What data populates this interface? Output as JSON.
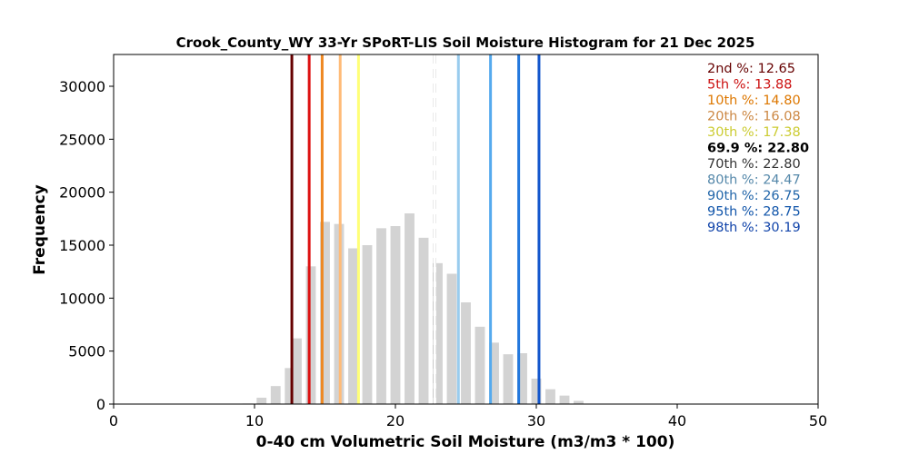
{
  "chart_data": {
    "type": "bar",
    "title": "Crook_County_WY 33-Yr SPoRT-LIS Soil Moisture Histogram for 21 Dec 2025",
    "xlabel": "0-40 cm Volumetric Soil Moisture (m3/m3 * 100)",
    "ylabel": "Frequency",
    "xlim": [
      0,
      50
    ],
    "ylim": [
      0,
      33000
    ],
    "xticks": [
      0,
      10,
      20,
      30,
      40,
      50
    ],
    "yticks": [
      0,
      5000,
      10000,
      15000,
      20000,
      25000,
      30000
    ],
    "bar_color": "#d3d3d3",
    "bins": [
      {
        "x": 9.5,
        "value": 50
      },
      {
        "x": 10.5,
        "value": 600
      },
      {
        "x": 11.5,
        "value": 1700
      },
      {
        "x": 12.5,
        "value": 3400
      },
      {
        "x": 13.0,
        "value": 6200
      },
      {
        "x": 14.0,
        "value": 13000
      },
      {
        "x": 15.0,
        "value": 17200
      },
      {
        "x": 16.0,
        "value": 17000
      },
      {
        "x": 17.0,
        "value": 14700
      },
      {
        "x": 18.0,
        "value": 15000
      },
      {
        "x": 19.0,
        "value": 16600
      },
      {
        "x": 20.0,
        "value": 16800
      },
      {
        "x": 21.0,
        "value": 18000
      },
      {
        "x": 22.0,
        "value": 15700
      },
      {
        "x": 23.0,
        "value": 13300
      },
      {
        "x": 24.0,
        "value": 12300
      },
      {
        "x": 25.0,
        "value": 9600
      },
      {
        "x": 26.0,
        "value": 7300
      },
      {
        "x": 27.0,
        "value": 5800
      },
      {
        "x": 28.0,
        "value": 4700
      },
      {
        "x": 29.0,
        "value": 4800
      },
      {
        "x": 30.0,
        "value": 2400
      },
      {
        "x": 31.0,
        "value": 1400
      },
      {
        "x": 32.0,
        "value": 800
      },
      {
        "x": 33.0,
        "value": 300
      }
    ],
    "percentile_lines": [
      {
        "label": "2nd %: 12.65",
        "value": 12.65,
        "color": "#660000",
        "style": "solid"
      },
      {
        "label": "5th %: 13.88",
        "value": 13.88,
        "color": "#dd1111",
        "style": "solid"
      },
      {
        "label": "10th %: 14.80",
        "value": 14.8,
        "color": "#ee8822",
        "style": "solid"
      },
      {
        "label": "20th %: 16.08",
        "value": 16.08,
        "color": "#ffbb77",
        "style": "solid"
      },
      {
        "label": "30th %: 17.38",
        "value": 17.38,
        "color": "#ffff77",
        "style": "solid"
      },
      {
        "label": "69.9 %: 22.80",
        "value": 22.8,
        "color": "#000000",
        "style": "dashed"
      },
      {
        "label": "70th %: 22.80",
        "value": 22.8,
        "color": "#ffffff",
        "style": "solid"
      },
      {
        "label": "80th %: 24.47",
        "value": 24.47,
        "color": "#99ccee",
        "style": "solid"
      },
      {
        "label": "90th %: 26.75",
        "value": 26.75,
        "color": "#55aaee",
        "style": "solid"
      },
      {
        "label": "95th %: 28.75",
        "value": 28.75,
        "color": "#2277dd",
        "style": "solid"
      },
      {
        "label": "98th %: 30.19",
        "value": 30.19,
        "color": "#1155cc",
        "style": "solid"
      }
    ],
    "legend": {
      "position": "top-right",
      "entries": [
        {
          "text": "2nd %: 12.65",
          "color": "#660000"
        },
        {
          "text": "5th %: 13.88",
          "color": "#cc1111"
        },
        {
          "text": "10th %: 14.80",
          "color": "#dd7700"
        },
        {
          "text": "20th %: 16.08",
          "color": "#cc8844"
        },
        {
          "text": "30th %: 17.38",
          "color": "#cccc33"
        },
        {
          "text": "69.9 %: 22.80",
          "color": "#000000",
          "bold": true
        },
        {
          "text": "70th %: 22.80",
          "color": "#333333"
        },
        {
          "text": "80th %: 24.47",
          "color": "#5588aa"
        },
        {
          "text": "90th %: 26.75",
          "color": "#2266aa"
        },
        {
          "text": "95th %: 28.75",
          "color": "#1155aa"
        },
        {
          "text": "98th %: 30.19",
          "color": "#1144aa"
        }
      ]
    }
  }
}
